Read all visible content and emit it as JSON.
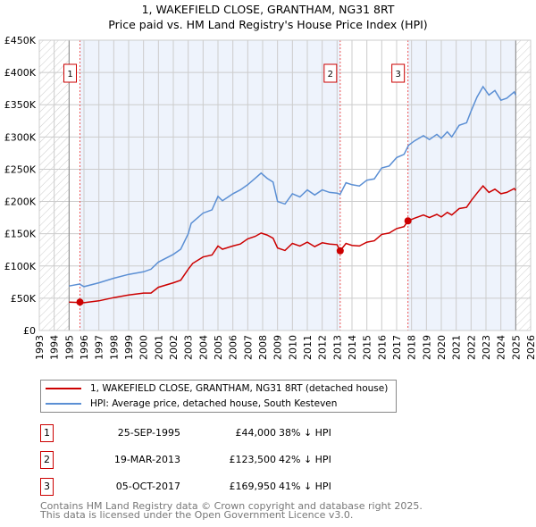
{
  "chart_data": {
    "type": "line",
    "title": "1, WAKEFIELD CLOSE, GRANTHAM, NG31 8RT",
    "subtitle": "Price paid vs. HM Land Registry's House Price Index (HPI)",
    "xlim": [
      1993,
      2026
    ],
    "ylim": [
      0,
      450000
    ],
    "x_ticks": [
      "1993",
      "1994",
      "1995",
      "1996",
      "1997",
      "1998",
      "1999",
      "2000",
      "2001",
      "2002",
      "2003",
      "2004",
      "2005",
      "2006",
      "2007",
      "2008",
      "2009",
      "2010",
      "2011",
      "2012",
      "2013",
      "2014",
      "2015",
      "2016",
      "2017",
      "2018",
      "2019",
      "2020",
      "2021",
      "2022",
      "2023",
      "2024",
      "2025",
      "2026"
    ],
    "y_ticks": [
      {
        "v": 0,
        "label": "£0"
      },
      {
        "v": 50000,
        "label": "£50K"
      },
      {
        "v": 100000,
        "label": "£100K"
      },
      {
        "v": 150000,
        "label": "£150K"
      },
      {
        "v": 200000,
        "label": "£200K"
      },
      {
        "v": 250000,
        "label": "£250K"
      },
      {
        "v": 300000,
        "label": "£300K"
      },
      {
        "v": 350000,
        "label": "£350K"
      },
      {
        "v": 400000,
        "label": "£400K"
      },
      {
        "v": 450000,
        "label": "£450K"
      }
    ],
    "grid": true,
    "data_range": [
      1995,
      2025
    ],
    "series": [
      {
        "name": "1, WAKEFIELD CLOSE, GRANTHAM, NG31 8RT (detached house)",
        "color": "#cc0000",
        "x": [
          1995,
          1996,
          1997,
          1998,
          1999,
          2000,
          2000.5,
          2001,
          2002,
          2002.5,
          2003,
          2003.3,
          2004,
          2004.6,
          2005,
          2005.3,
          2006,
          2006.5,
          2007,
          2007.5,
          2007.9,
          2008.3,
          2008.7,
          2009,
          2009.5,
          2010,
          2010.5,
          2011,
          2011.5,
          2012,
          2012.5,
          2013,
          2013.21,
          2013.6,
          2014,
          2014.5,
          2015,
          2015.5,
          2016,
          2016.5,
          2017,
          2017.5,
          2017.76,
          2018.2,
          2018.8,
          2019.2,
          2019.7,
          2020,
          2020.4,
          2020.7,
          2021.2,
          2021.7,
          2022,
          2022.4,
          2022.8,
          2023.2,
          2023.6,
          2024,
          2024.4,
          2024.9,
          2025
        ],
        "y": [
          44000,
          43000,
          46000,
          51000,
          55000,
          58000,
          58000,
          67000,
          74000,
          78000,
          95000,
          104000,
          114000,
          117000,
          131000,
          126000,
          131000,
          134000,
          142000,
          146000,
          151000,
          148000,
          143000,
          128000,
          124000,
          135000,
          131000,
          137000,
          130000,
          136000,
          134000,
          133000,
          123500,
          135000,
          132000,
          131000,
          137000,
          139000,
          149000,
          151000,
          158000,
          161000,
          169950,
          174000,
          179000,
          175000,
          180000,
          176000,
          183000,
          179000,
          189000,
          191000,
          201000,
          213000,
          224000,
          214000,
          219000,
          212000,
          214000,
          220000,
          217000
        ]
      },
      {
        "name": "HPI: Average price, detached house, South Kesteven",
        "color": "#5b8fd4",
        "x": [
          1995,
          1995.7,
          1996,
          1997,
          1998,
          1999,
          2000,
          2000.5,
          2001,
          2002,
          2002.5,
          2003,
          2003.2,
          2004,
          2004.6,
          2005,
          2005.3,
          2006,
          2006.5,
          2007,
          2007.5,
          2007.9,
          2008.3,
          2008.7,
          2009,
          2009.5,
          2010,
          2010.5,
          2011,
          2011.5,
          2012,
          2012.5,
          2013,
          2013.2,
          2013.6,
          2014,
          2014.5,
          2015,
          2015.5,
          2016,
          2016.5,
          2017,
          2017.5,
          2017.8,
          2018.2,
          2018.8,
          2019.2,
          2019.7,
          2020,
          2020.4,
          2020.7,
          2021.2,
          2021.7,
          2022,
          2022.4,
          2022.8,
          2023.2,
          2023.6,
          2024,
          2024.4,
          2024.9,
          2025
        ],
        "y": [
          69000,
          72000,
          68000,
          74000,
          81000,
          87000,
          91000,
          95000,
          106000,
          118000,
          126000,
          150000,
          166000,
          182000,
          187000,
          208000,
          201000,
          212000,
          218000,
          226000,
          236000,
          244000,
          236000,
          230000,
          200000,
          196000,
          212000,
          207000,
          218000,
          210000,
          218000,
          214000,
          213000,
          211000,
          229000,
          226000,
          224000,
          233000,
          235000,
          252000,
          255000,
          268000,
          273000,
          287000,
          294000,
          302000,
          296000,
          304000,
          298000,
          308000,
          300000,
          318000,
          322000,
          340000,
          362000,
          378000,
          365000,
          372000,
          357000,
          360000,
          370000,
          365000
        ]
      }
    ],
    "sales": [
      {
        "n": "1",
        "x": 1995.73,
        "y": 44000,
        "date": "25-SEP-1995",
        "price": "£44,000",
        "hpi": "38% ↓ HPI"
      },
      {
        "n": "2",
        "x": 2013.21,
        "y": 123500,
        "date": "19-MAR-2013",
        "price": "£123,500",
        "hpi": "42% ↓ HPI"
      },
      {
        "n": "3",
        "x": 2017.76,
        "y": 169950,
        "date": "05-OCT-2017",
        "price": "£169,950",
        "hpi": "41% ↓ HPI"
      }
    ]
  },
  "legend": {
    "property": "1, WAKEFIELD CLOSE, GRANTHAM, NG31 8RT (detached house)",
    "hpi": "HPI: Average price, detached house, South Kesteven"
  },
  "footer": {
    "line1": "Contains HM Land Registry data © Crown copyright and database right 2025.",
    "line2": "This data is licensed under the Open Government Licence v3.0."
  }
}
